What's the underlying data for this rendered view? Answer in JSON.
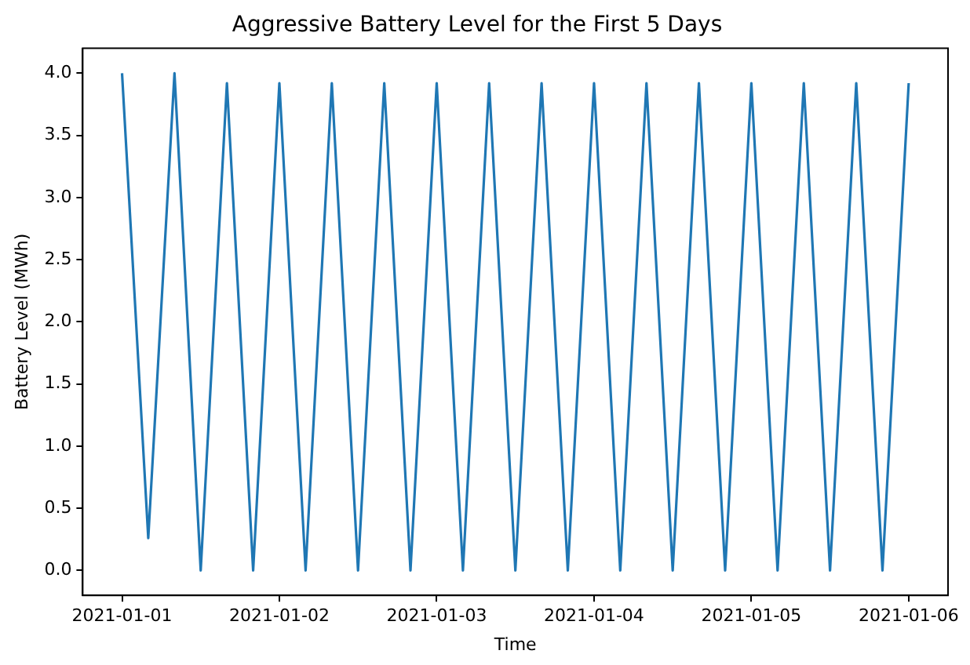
{
  "chart_data": {
    "type": "line",
    "title": "Aggressive Battery Level for the First 5 Days",
    "xlabel": "Time",
    "ylabel": "Battery Level (MWh)",
    "x": [
      "2021-01-01T00:00",
      "2021-01-01T04:00",
      "2021-01-01T08:00",
      "2021-01-01T12:00",
      "2021-01-01T16:00",
      "2021-01-01T20:00",
      "2021-01-02T00:00",
      "2021-01-02T04:00",
      "2021-01-02T08:00",
      "2021-01-02T12:00",
      "2021-01-02T16:00",
      "2021-01-02T20:00",
      "2021-01-03T00:00",
      "2021-01-03T04:00",
      "2021-01-03T08:00",
      "2021-01-03T12:00",
      "2021-01-03T16:00",
      "2021-01-03T20:00",
      "2021-01-04T00:00",
      "2021-01-04T04:00",
      "2021-01-04T08:00",
      "2021-01-04T12:00",
      "2021-01-04T16:00",
      "2021-01-04T20:00",
      "2021-01-05T00:00",
      "2021-01-05T04:00",
      "2021-01-05T08:00",
      "2021-01-05T12:00",
      "2021-01-05T16:00",
      "2021-01-05T20:00",
      "2021-01-06T00:00"
    ],
    "series": [
      {
        "color": "#1f77b4",
        "values": [
          4.0,
          0.26,
          4.0,
          0.0,
          3.92,
          0.0,
          3.92,
          0.0,
          3.92,
          0.0,
          3.92,
          0.0,
          3.92,
          0.0,
          3.92,
          0.0,
          3.92,
          0.0,
          3.92,
          0.0,
          3.92,
          0.0,
          3.92,
          0.0,
          3.92,
          0.0,
          3.92,
          0.0,
          3.92,
          0.0,
          3.92
        ]
      }
    ],
    "xlim": [
      "2020-12-31T18:00",
      "2021-01-06T06:00"
    ],
    "xticks": [
      "2021-01-01",
      "2021-01-02",
      "2021-01-03",
      "2021-01-04",
      "2021-01-05",
      "2021-01-06"
    ],
    "ylim": [
      -0.2,
      4.2
    ],
    "yticks": [
      {
        "value": 0,
        "label": "0.0"
      },
      0.5,
      {
        "value": 1,
        "label": "1.0"
      },
      1.5,
      {
        "value": 2,
        "label": "2.0"
      },
      2.5,
      {
        "value": 3,
        "label": "3.0"
      },
      3.5,
      {
        "value": 4,
        "label": "4.0"
      }
    ],
    "grid": false,
    "legend": false,
    "marker": "none",
    "line_style": "solid"
  }
}
